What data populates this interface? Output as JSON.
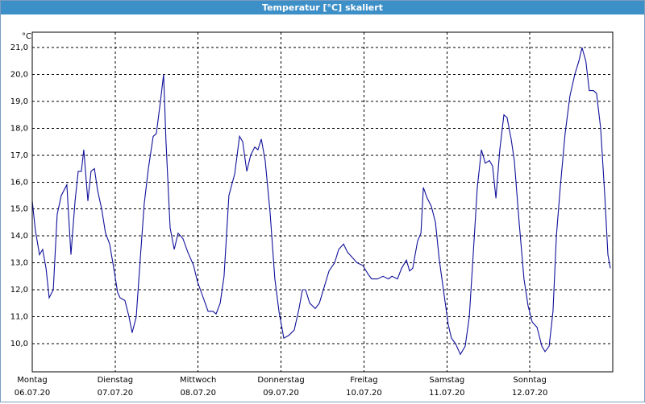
{
  "chart_data": {
    "type": "line",
    "title": "Temperatur [°C] skaliert",
    "y_unit": "°C",
    "color": "#10109a",
    "grid": true,
    "xlim": [
      0,
      168
    ],
    "ylim": [
      8.95,
      21.57
    ],
    "xticks": [
      {
        "value": 0,
        "label": "Montag"
      },
      {
        "value": 24,
        "label": "Dienstag"
      },
      {
        "value": 48,
        "label": "Mittwoch"
      },
      {
        "value": 72,
        "label": "Donnerstag"
      },
      {
        "value": 96,
        "label": "Freitag"
      },
      {
        "value": 120,
        "label": "Samstag"
      },
      {
        "value": 144,
        "label": "Sonntag"
      }
    ],
    "xtick_dates": [
      "06.07.20",
      "07.07.20",
      "08.07.20",
      "09.07.20",
      "10.07.20",
      "11.07.20",
      "12.07.20"
    ],
    "yticks": [
      {
        "value": 10,
        "label": "10,0"
      },
      {
        "value": 11,
        "label": "11,0"
      },
      {
        "value": 12,
        "label": "12,0"
      },
      {
        "value": 13,
        "label": "13,0"
      },
      {
        "value": 14,
        "label": "14,0"
      },
      {
        "value": 15,
        "label": "15,0"
      },
      {
        "value": 16,
        "label": "16,0"
      },
      {
        "value": 17,
        "label": "17,0"
      },
      {
        "value": 18,
        "label": "18,0"
      },
      {
        "value": 19,
        "label": "19,0"
      },
      {
        "value": 20,
        "label": "20,0"
      },
      {
        "value": 21,
        "label": "21,0"
      }
    ],
    "x": [
      0,
      0.9,
      2.1,
      3.0,
      4.0,
      4.9,
      6.1,
      7.2,
      8.4,
      10.0,
      11.2,
      12.4,
      13.3,
      14.2,
      14.9,
      16.1,
      17.0,
      18.0,
      18.9,
      20.1,
      21.2,
      22.4,
      23.6,
      24.7,
      25.4,
      26.8,
      28.0,
      28.9,
      30.1,
      31.3,
      32.4,
      33.6,
      35.0,
      35.9,
      37.1,
      38.0,
      38.7,
      39.9,
      41.1,
      42.2,
      43.6,
      45.0,
      46.7,
      47.8,
      49.5,
      50.9,
      52.3,
      53.2,
      54.4,
      55.5,
      56.9,
      58.6,
      60.0,
      60.9,
      62.1,
      63.2,
      64.4,
      65.3,
      66.3,
      67.4,
      68.8,
      70.2,
      71.4,
      72.8,
      74.2,
      75.8,
      77.2,
      78.2,
      79.1,
      80.3,
      81.9,
      83.1,
      84.5,
      85.9,
      87.5,
      88.7,
      90.1,
      91.2,
      92.6,
      94.0,
      95.7,
      97.1,
      98.2,
      99.9,
      101.5,
      103.1,
      104.1,
      105.7,
      106.9,
      108.3,
      109.2,
      110.1,
      111.5,
      112.5,
      113.2,
      114.3,
      115.5,
      116.7,
      117.8,
      119.2,
      120.4,
      121.3,
      122.5,
      123.9,
      125.3,
      126.5,
      127.6,
      128.8,
      130.0,
      131.1,
      132.3,
      133.2,
      134.2,
      135.3,
      136.5,
      137.4,
      138.6,
      139.5,
      140.9,
      142.3,
      143.5,
      144.7,
      146.1,
      147.5,
      148.4,
      149.6,
      150.7,
      151.7,
      152.8,
      154.2,
      155.6,
      157.0,
      158.2,
      159.1,
      160.2,
      161.2,
      162.4,
      163.3,
      164.5,
      165.7,
      166.6,
      167.3
    ],
    "values": [
      15.3,
      14.2,
      13.3,
      13.5,
      12.8,
      11.7,
      12.0,
      14.8,
      15.5,
      15.9,
      13.3,
      15.3,
      16.4,
      16.4,
      17.2,
      15.3,
      16.4,
      16.5,
      15.7,
      15.0,
      14.1,
      13.7,
      12.8,
      11.9,
      11.7,
      11.6,
      11.0,
      10.4,
      11.0,
      13.2,
      15.2,
      16.5,
      17.7,
      17.8,
      19.0,
      20.0,
      17.5,
      14.3,
      13.5,
      14.1,
      13.9,
      13.4,
      12.9,
      12.3,
      11.7,
      11.2,
      11.2,
      11.1,
      11.5,
      12.5,
      15.5,
      16.3,
      17.7,
      17.5,
      16.4,
      17.0,
      17.3,
      17.2,
      17.6,
      16.8,
      14.9,
      12.4,
      11.2,
      10.2,
      10.3,
      10.5,
      11.3,
      12.0,
      12.0,
      11.5,
      11.3,
      11.5,
      12.1,
      12.7,
      13.0,
      13.5,
      13.7,
      13.4,
      13.2,
      13.0,
      12.9,
      12.6,
      12.4,
      12.4,
      12.5,
      12.4,
      12.5,
      12.4,
      12.8,
      13.1,
      12.7,
      12.8,
      13.8,
      14.1,
      15.8,
      15.4,
      15.1,
      14.5,
      13.1,
      11.8,
      10.7,
      10.2,
      10.0,
      9.6,
      9.9,
      11.0,
      13.3,
      15.8,
      17.2,
      16.7,
      16.8,
      16.6,
      15.4,
      17.2,
      18.5,
      18.4,
      17.6,
      16.8,
      14.5,
      12.4,
      11.4,
      10.8,
      10.6,
      9.9,
      9.7,
      9.9,
      11.2,
      14.0,
      15.8,
      17.8,
      19.2,
      20.0,
      20.5,
      21.0,
      20.5,
      19.4,
      19.4,
      19.3,
      18.0,
      15.5,
      13.3,
      12.8
    ]
  }
}
